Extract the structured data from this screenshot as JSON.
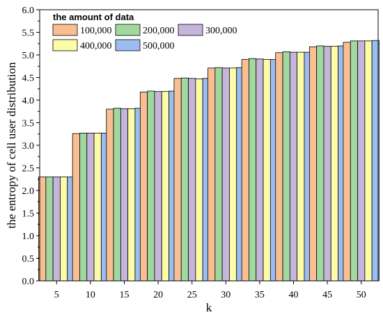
{
  "chart_data": {
    "type": "bar",
    "title": "",
    "xlabel": "k",
    "ylabel": "the entropy of cell user distribution",
    "categories": [
      "5",
      "10",
      "15",
      "20",
      "25",
      "30",
      "35",
      "40",
      "45",
      "50"
    ],
    "ylim": [
      0,
      6
    ],
    "yticks": [
      "0.0",
      "0.5",
      "1.0",
      "1.5",
      "2.0",
      "2.5",
      "3.0",
      "3.5",
      "4.0",
      "4.5",
      "5.0",
      "5.5",
      "6.0"
    ],
    "grid": false,
    "legend": {
      "title": "the amount of data",
      "placement": "top-left"
    },
    "series": [
      {
        "name": "100,000",
        "color": "#F9BE92",
        "values": [
          2.3,
          3.26,
          3.8,
          4.18,
          4.48,
          4.71,
          4.9,
          5.05,
          5.18,
          5.28
        ]
      },
      {
        "name": "200,000",
        "color": "#A0D8A0",
        "values": [
          2.3,
          3.27,
          3.82,
          4.2,
          4.49,
          4.72,
          4.92,
          5.07,
          5.2,
          5.31
        ]
      },
      {
        "name": "300,000",
        "color": "#C5B5DA",
        "values": [
          2.3,
          3.27,
          3.81,
          4.19,
          4.48,
          4.71,
          4.91,
          5.06,
          5.19,
          5.31
        ]
      },
      {
        "name": "400,000",
        "color": "#FCFCA8",
        "values": [
          2.3,
          3.27,
          3.81,
          4.19,
          4.47,
          4.71,
          4.9,
          5.06,
          5.19,
          5.31
        ]
      },
      {
        "name": "500,000",
        "color": "#9CBDF2",
        "values": [
          2.3,
          3.27,
          3.82,
          4.2,
          4.48,
          4.72,
          4.9,
          5.06,
          5.2,
          5.32
        ]
      }
    ]
  }
}
